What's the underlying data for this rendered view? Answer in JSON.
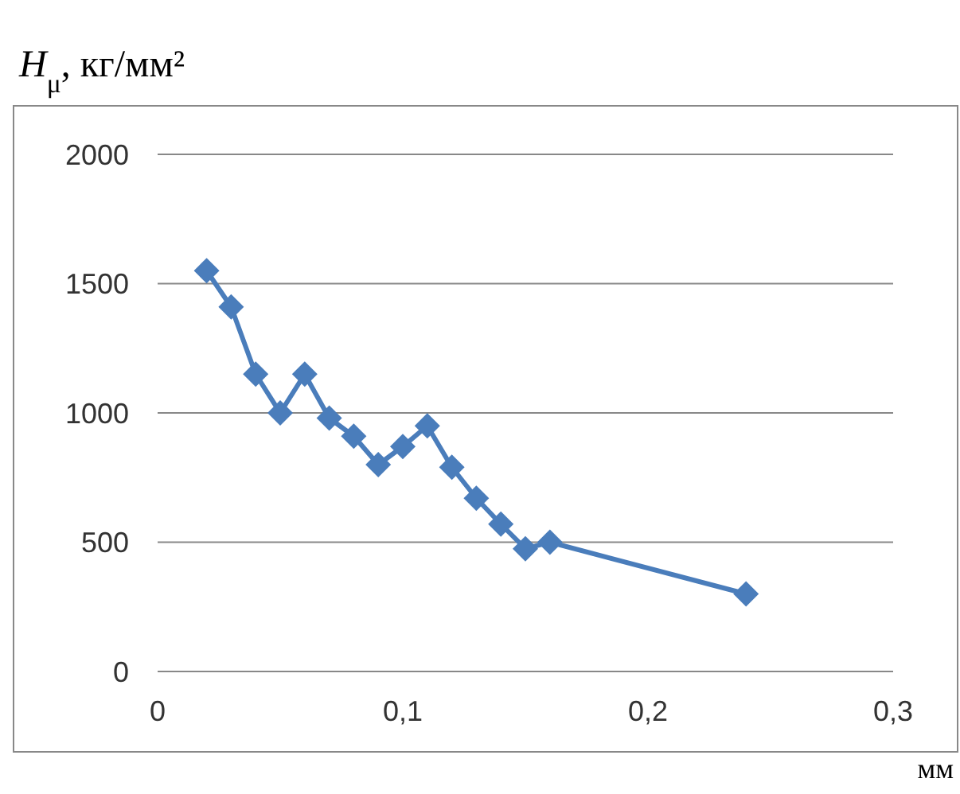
{
  "chart_data": {
    "type": "line",
    "ylabel": "H$_{μ}$, кг/мм²",
    "xlabel": "мм",
    "x": [
      0.02,
      0.03,
      0.04,
      0.05,
      0.06,
      0.07,
      0.08,
      0.09,
      0.1,
      0.11,
      0.12,
      0.13,
      0.14,
      0.15,
      0.16,
      0.24
    ],
    "series": [
      {
        "color": "#4a7dbb",
        "values": [
          1550,
          1410,
          1150,
          1000,
          1150,
          980,
          910,
          800,
          870,
          950,
          790,
          670,
          570,
          475,
          500,
          300
        ]
      }
    ],
    "xlim": [
      0,
      0.3
    ],
    "xticks": [
      0,
      {
        "value": 0.1,
        "label": "0,1"
      },
      {
        "value": 0.2,
        "label": "0,2"
      },
      {
        "value": 0.3,
        "label": "0,3"
      }
    ],
    "ylim": [
      0,
      2000
    ],
    "yticks": [
      0,
      500,
      1000,
      1500,
      2000
    ],
    "grid": "y",
    "legend": false,
    "marker": "diamond",
    "line_style": "solid"
  }
}
